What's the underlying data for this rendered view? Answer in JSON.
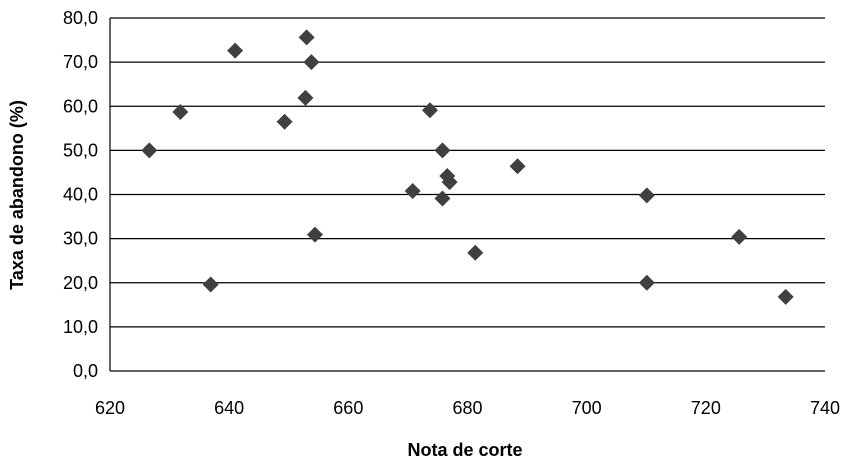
{
  "chart_data": {
    "type": "scatter",
    "xlabel": "Nota de corte",
    "ylabel": "Taxa de abandono (%)",
    "xlim": [
      620,
      740
    ],
    "ylim": [
      0,
      80
    ],
    "xticks": [
      "620",
      "640",
      "660",
      "680",
      "700",
      "720",
      "740"
    ],
    "yticks": [
      "0,0",
      "10,0",
      "20,0",
      "30,0",
      "40,0",
      "50,0",
      "60,0",
      "70,0",
      "80,0"
    ],
    "grid": "horizontal",
    "marker": "diamond",
    "color": "#404040",
    "points": [
      {
        "x": 626.6,
        "y": 50.0
      },
      {
        "x": 631.8,
        "y": 58.7
      },
      {
        "x": 636.9,
        "y": 19.6
      },
      {
        "x": 641.0,
        "y": 72.6
      },
      {
        "x": 649.3,
        "y": 56.5
      },
      {
        "x": 652.8,
        "y": 61.9
      },
      {
        "x": 653.0,
        "y": 75.6
      },
      {
        "x": 653.8,
        "y": 70.0
      },
      {
        "x": 654.4,
        "y": 30.9
      },
      {
        "x": 670.8,
        "y": 40.8
      },
      {
        "x": 673.7,
        "y": 59.1
      },
      {
        "x": 675.8,
        "y": 50.0
      },
      {
        "x": 675.8,
        "y": 39.1
      },
      {
        "x": 676.6,
        "y": 44.2
      },
      {
        "x": 677.0,
        "y": 42.8
      },
      {
        "x": 681.3,
        "y": 26.8
      },
      {
        "x": 688.4,
        "y": 46.4
      },
      {
        "x": 710.1,
        "y": 39.8
      },
      {
        "x": 710.1,
        "y": 20.0
      },
      {
        "x": 725.6,
        "y": 30.4
      },
      {
        "x": 733.4,
        "y": 16.8
      }
    ]
  }
}
